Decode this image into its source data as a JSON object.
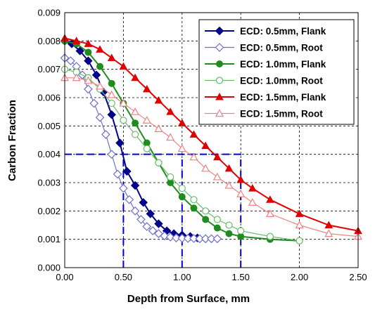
{
  "chart_data": {
    "type": "line",
    "title": "",
    "xlabel": "Depth from Surface, mm",
    "ylabel": "Carbon Fraction",
    "xlim": [
      0,
      2.5
    ],
    "ylim": [
      0,
      0.009
    ],
    "x_ticks": [
      "0.00",
      "0.50",
      "1.00",
      "1.50",
      "2.00",
      "2.50"
    ],
    "y_ticks": [
      "0.000",
      "0.001",
      "0.002",
      "0.003",
      "0.004",
      "0.005",
      "0.006",
      "0.007",
      "0.008",
      "0.009"
    ],
    "grid": "dashed",
    "legend_position": "top-right",
    "series": [
      {
        "name": "ECD: 0.5mm, Flank",
        "color": "#00008B",
        "marker": "diamond-filled",
        "points": [
          [
            0,
            0.008
          ],
          [
            0.06,
            0.0079
          ],
          [
            0.13,
            0.00765
          ],
          [
            0.2,
            0.0073
          ],
          [
            0.27,
            0.0068
          ],
          [
            0.33,
            0.0062
          ],
          [
            0.4,
            0.0054
          ],
          [
            0.47,
            0.0044
          ],
          [
            0.53,
            0.0034
          ],
          [
            0.6,
            0.0029
          ],
          [
            0.67,
            0.0023
          ],
          [
            0.73,
            0.0019
          ],
          [
            0.8,
            0.00155
          ],
          [
            0.87,
            0.0013
          ],
          [
            0.93,
            0.0012
          ],
          [
            1.0,
            0.00115
          ],
          [
            1.07,
            0.0011
          ],
          [
            1.13,
            0.00105
          ],
          [
            1.2,
            0.00102
          ]
        ]
      },
      {
        "name": "ECD: 0.5mm, Root",
        "color": "#7070CC",
        "marker": "diamond-open",
        "points": [
          [
            0,
            0.0074
          ],
          [
            0.05,
            0.0073
          ],
          [
            0.1,
            0.0071
          ],
          [
            0.15,
            0.0068
          ],
          [
            0.2,
            0.0063
          ],
          [
            0.25,
            0.0058
          ],
          [
            0.3,
            0.0053
          ],
          [
            0.35,
            0.0047
          ],
          [
            0.4,
            0.004
          ],
          [
            0.45,
            0.0033
          ],
          [
            0.5,
            0.0028
          ],
          [
            0.55,
            0.0024
          ],
          [
            0.6,
            0.002
          ],
          [
            0.65,
            0.0017
          ],
          [
            0.7,
            0.00145
          ],
          [
            0.75,
            0.0013
          ],
          [
            0.8,
            0.0012
          ],
          [
            0.85,
            0.00112
          ],
          [
            0.9,
            0.00108
          ],
          [
            0.95,
            0.00105
          ],
          [
            1.0,
            0.00104
          ],
          [
            1.05,
            0.00103
          ],
          [
            1.1,
            0.00103
          ],
          [
            1.15,
            0.00102
          ],
          [
            1.2,
            0.00102
          ],
          [
            1.25,
            0.00102
          ],
          [
            1.3,
            0.00102
          ]
        ]
      },
      {
        "name": "ECD: 1.0mm, Flank",
        "color": "#1E8C1E",
        "marker": "circle-filled",
        "points": [
          [
            0,
            0.008
          ],
          [
            0.1,
            0.0079
          ],
          [
            0.2,
            0.0076
          ],
          [
            0.3,
            0.0071
          ],
          [
            0.4,
            0.0065
          ],
          [
            0.5,
            0.0058
          ],
          [
            0.6,
            0.0051
          ],
          [
            0.7,
            0.0044
          ],
          [
            0.8,
            0.0037
          ],
          [
            0.9,
            0.003
          ],
          [
            1.0,
            0.0025
          ],
          [
            1.1,
            0.0021
          ],
          [
            1.2,
            0.0017
          ],
          [
            1.3,
            0.0014
          ],
          [
            1.4,
            0.0012
          ],
          [
            1.5,
            0.0011
          ],
          [
            1.75,
            0.001
          ],
          [
            2.0,
            0.00095
          ]
        ]
      },
      {
        "name": "ECD: 1.0mm, Root",
        "color": "#66BB66",
        "marker": "circle-open",
        "points": [
          [
            0,
            0.007
          ],
          [
            0.1,
            0.0069
          ],
          [
            0.2,
            0.0067
          ],
          [
            0.3,
            0.0063
          ],
          [
            0.4,
            0.0058
          ],
          [
            0.5,
            0.0052
          ],
          [
            0.6,
            0.0047
          ],
          [
            0.7,
            0.0042
          ],
          [
            0.8,
            0.0037
          ],
          [
            0.9,
            0.0032
          ],
          [
            1.0,
            0.0028
          ],
          [
            1.1,
            0.0024
          ],
          [
            1.2,
            0.002
          ],
          [
            1.3,
            0.0017
          ],
          [
            1.4,
            0.0015
          ],
          [
            1.5,
            0.0013
          ],
          [
            1.75,
            0.0011
          ],
          [
            2.0,
            0.00095
          ]
        ]
      },
      {
        "name": "ECD: 1.5mm, Flank",
        "color": "#E00000",
        "marker": "triangle-filled",
        "points": [
          [
            0,
            0.0081
          ],
          [
            0.1,
            0.008
          ],
          [
            0.2,
            0.0079
          ],
          [
            0.3,
            0.0077
          ],
          [
            0.4,
            0.0074
          ],
          [
            0.5,
            0.0071
          ],
          [
            0.6,
            0.0067
          ],
          [
            0.7,
            0.0063
          ],
          [
            0.8,
            0.0059
          ],
          [
            0.9,
            0.0055
          ],
          [
            1.0,
            0.0051
          ],
          [
            1.1,
            0.0047
          ],
          [
            1.2,
            0.0043
          ],
          [
            1.3,
            0.0039
          ],
          [
            1.4,
            0.0035
          ],
          [
            1.5,
            0.0031
          ],
          [
            1.6,
            0.0028
          ],
          [
            1.75,
            0.0024
          ],
          [
            2.0,
            0.0019
          ],
          [
            2.25,
            0.0015
          ],
          [
            2.5,
            0.0013
          ]
        ]
      },
      {
        "name": "ECD: 1.5mm, Root",
        "color": "#F08080",
        "marker": "triangle-open",
        "points": [
          [
            0,
            0.0067
          ],
          [
            0.1,
            0.0067
          ],
          [
            0.2,
            0.0066
          ],
          [
            0.3,
            0.0064
          ],
          [
            0.4,
            0.0061
          ],
          [
            0.5,
            0.0058
          ],
          [
            0.6,
            0.0055
          ],
          [
            0.7,
            0.0052
          ],
          [
            0.8,
            0.0049
          ],
          [
            0.9,
            0.0046
          ],
          [
            1.0,
            0.0042
          ],
          [
            1.1,
            0.0039
          ],
          [
            1.2,
            0.0035
          ],
          [
            1.3,
            0.0032
          ],
          [
            1.4,
            0.0029
          ],
          [
            1.5,
            0.0026
          ],
          [
            1.6,
            0.0023
          ],
          [
            1.75,
            0.0019
          ],
          [
            2.0,
            0.0015
          ],
          [
            2.25,
            0.0012
          ],
          [
            2.5,
            0.0011
          ]
        ]
      }
    ],
    "reference_lines": [
      {
        "from": [
          0,
          0.004
        ],
        "to": [
          1.5,
          0.004
        ]
      },
      {
        "from": [
          0.5,
          0
        ],
        "to": [
          0.5,
          0.004
        ]
      },
      {
        "from": [
          1.0,
          0
        ],
        "to": [
          1.0,
          0.004
        ]
      },
      {
        "from": [
          1.5,
          0
        ],
        "to": [
          1.5,
          0.004
        ]
      }
    ]
  }
}
